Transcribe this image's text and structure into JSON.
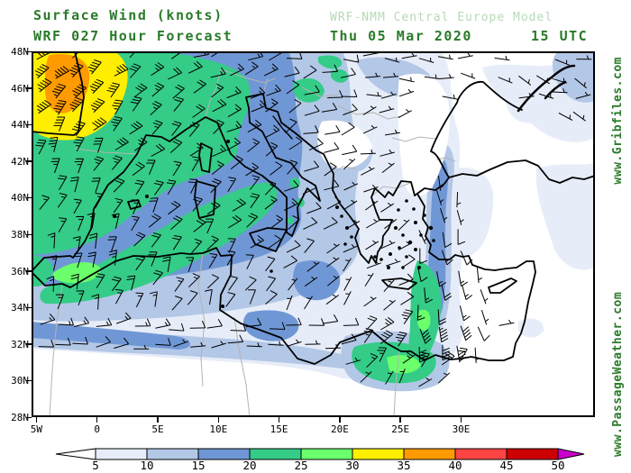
{
  "header": {
    "title_line1": "Surface Wind (knots)",
    "title_line2": "WRF 027 Hour Forecast",
    "model_label": "WRF-NMM Central Europe Model",
    "date_label": "Thu 05 Mar 2020",
    "time_label": "15 UTC"
  },
  "watermark": {
    "passageweather": "www.PassageWeather.com",
    "gribfiles": "www.Gribfiles.com"
  },
  "axes": {
    "lat_labels": [
      "48N",
      "46N",
      "44N",
      "42N",
      "40N",
      "38N",
      "36N",
      "34N",
      "32N",
      "30N",
      "28N"
    ],
    "lon_labels": [
      "5W",
      "0",
      "5E",
      "10E",
      "15E",
      "20E",
      "25E",
      "30E"
    ]
  },
  "legend": {
    "tick_labels": [
      "5",
      "10",
      "15",
      "20",
      "25",
      "30",
      "35",
      "40",
      "45",
      "50"
    ],
    "segment_colors": [
      "#e7edf8",
      "#b3c7e7",
      "#7097d5",
      "#34cc87",
      "#6bff6b",
      "#ffee00",
      "#ff9b00",
      "#ff4444",
      "#cc0000"
    ],
    "under_color": "#ffffff",
    "over_color": "#cc00cc"
  },
  "colors": {
    "title_green": "#2a7a2a",
    "model_pale_green": "#b5dab5",
    "coast_black": "#000000",
    "border_gray": "#b3b3b3",
    "barb_black": "#000000"
  }
}
